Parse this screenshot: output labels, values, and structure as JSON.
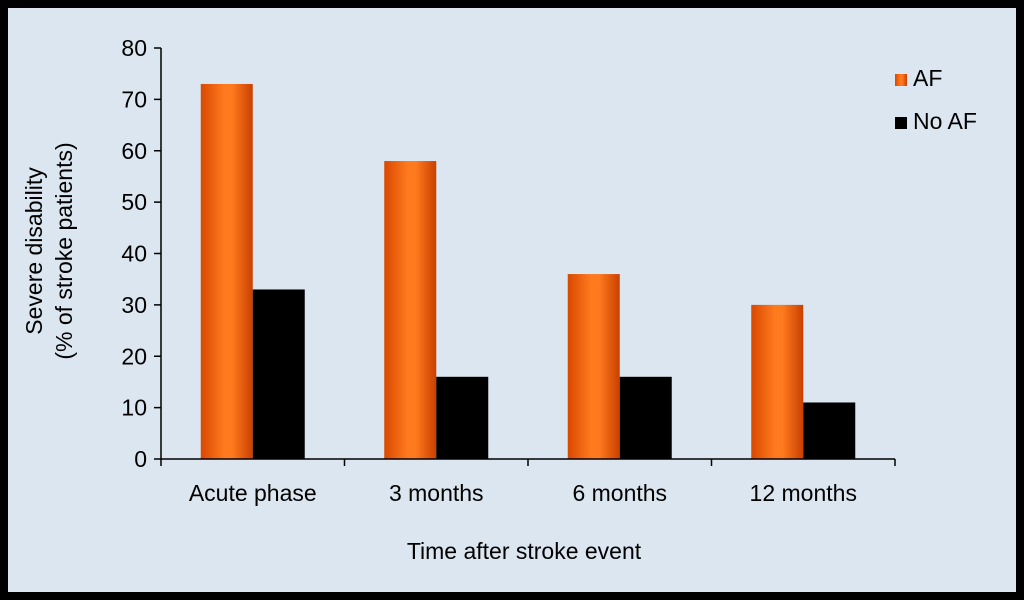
{
  "chart_data": {
    "type": "bar",
    "title": "",
    "xlabel": "Time after stroke event",
    "ylabel_line1": "Severe disability",
    "ylabel_line2": "(% of stroke patients)",
    "categories": [
      "Acute phase",
      "3 months",
      "6 months",
      "12 months"
    ],
    "ylim": [
      0,
      80
    ],
    "yticks": [
      0,
      10,
      20,
      30,
      40,
      50,
      60,
      70,
      80
    ],
    "grid": false,
    "legend_position": "top-right",
    "series": [
      {
        "name": "AF",
        "values": [
          73,
          58,
          36,
          30
        ],
        "color": "#f06010"
      },
      {
        "name": "No AF",
        "values": [
          33,
          16,
          16,
          11
        ],
        "color": "#000000"
      }
    ]
  },
  "colors": {
    "background": "#dce6f0",
    "frame": "#000000",
    "af_light": "#ff8a3a",
    "af_dark": "#d64a00"
  }
}
